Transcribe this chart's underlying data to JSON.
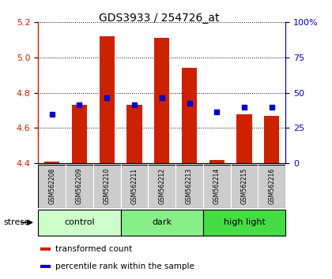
{
  "title": "GDS3933 / 254726_at",
  "samples": [
    "GSM562208",
    "GSM562209",
    "GSM562210",
    "GSM562211",
    "GSM562212",
    "GSM562213",
    "GSM562214",
    "GSM562215",
    "GSM562216"
  ],
  "bar_bottom": 4.4,
  "bar_values": [
    4.41,
    4.73,
    5.12,
    4.73,
    5.11,
    4.94,
    4.42,
    4.68,
    4.67
  ],
  "percentile_values": [
    4.68,
    4.73,
    4.77,
    4.73,
    4.77,
    4.74,
    4.69,
    4.72,
    4.72
  ],
  "ylim_left": [
    4.4,
    5.2
  ],
  "ylim_right": [
    0,
    100
  ],
  "yticks_left": [
    4.4,
    4.6,
    4.8,
    5.0,
    5.2
  ],
  "yticks_right": [
    0,
    25,
    50,
    75,
    100
  ],
  "ytick_right_labels": [
    "0",
    "25",
    "50",
    "75",
    "100%"
  ],
  "groups": [
    {
      "label": "control",
      "indices": [
        0,
        1,
        2
      ],
      "color": "#ccffcc"
    },
    {
      "label": "dark",
      "indices": [
        3,
        4,
        5
      ],
      "color": "#88ee88"
    },
    {
      "label": "high light",
      "indices": [
        6,
        7,
        8
      ],
      "color": "#44dd44"
    }
  ],
  "bar_color": "#cc2200",
  "percentile_color": "#0000cc",
  "bar_width": 0.55,
  "stress_label": "stress",
  "legend_items": [
    {
      "color": "#cc2200",
      "label": "transformed count"
    },
    {
      "color": "#0000cc",
      "label": "percentile rank within the sample"
    }
  ],
  "title_color": "#333333",
  "left_axis_color": "#cc2200",
  "right_axis_color": "#0000cc",
  "sample_bg_color": "#cccccc",
  "figsize": [
    4.2,
    3.54
  ],
  "dpi": 100
}
